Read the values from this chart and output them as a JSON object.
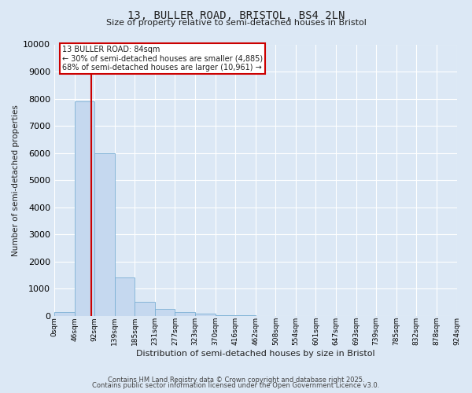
{
  "title_line1": "13, BULLER ROAD, BRISTOL, BS4 2LN",
  "title_line2": "Size of property relative to semi-detached houses in Bristol",
  "xlabel": "Distribution of semi-detached houses by size in Bristol",
  "ylabel": "Number of semi-detached properties",
  "bin_labels": [
    "0sqm",
    "46sqm",
    "92sqm",
    "139sqm",
    "185sqm",
    "231sqm",
    "277sqm",
    "323sqm",
    "370sqm",
    "416sqm",
    "462sqm",
    "508sqm",
    "554sqm",
    "601sqm",
    "647sqm",
    "693sqm",
    "739sqm",
    "785sqm",
    "832sqm",
    "878sqm",
    "924sqm"
  ],
  "bar_values": [
    150,
    7900,
    6000,
    1400,
    500,
    250,
    150,
    80,
    30,
    10,
    5,
    2,
    1,
    0,
    0,
    0,
    0,
    0,
    0,
    0
  ],
  "bar_color": "#c5d8ef",
  "bar_edge_color": "#7aafd4",
  "red_line_x": 1.84,
  "annotation_title": "13 BULLER ROAD: 84sqm",
  "annotation_line1": "← 30% of semi-detached houses are smaller (4,885)",
  "annotation_line2": "68% of semi-detached houses are larger (10,961) →",
  "annotation_box_color": "#ffffff",
  "annotation_box_edge_color": "#cc0000",
  "red_line_color": "#cc0000",
  "ylim": [
    0,
    10000
  ],
  "yticks": [
    0,
    1000,
    2000,
    3000,
    4000,
    5000,
    6000,
    7000,
    8000,
    9000,
    10000
  ],
  "background_color": "#dce8f5",
  "plot_bg_color": "#dce8f5",
  "grid_color": "#ffffff",
  "font_color": "#222222",
  "footer_line1": "Contains HM Land Registry data © Crown copyright and database right 2025.",
  "footer_line2": "Contains public sector information licensed under the Open Government Licence v3.0."
}
